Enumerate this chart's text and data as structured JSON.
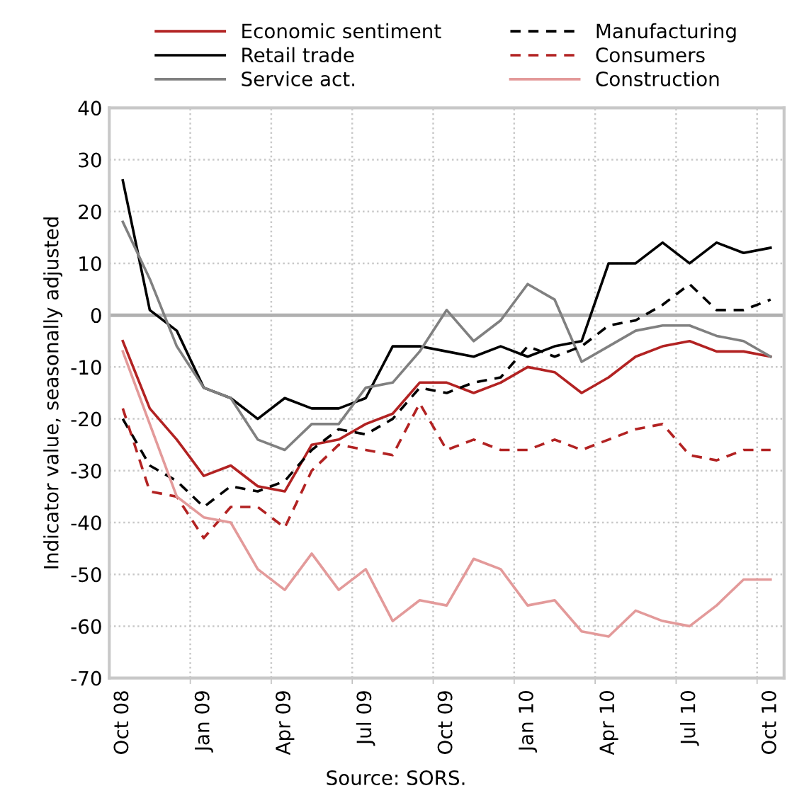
{
  "chart_data": {
    "type": "line",
    "ylabel": "Indicator value, seasonally adjusted",
    "annotations": [
      "Source: SORS."
    ],
    "categories": [
      "Oct 08",
      null,
      null,
      "Jan 09",
      null,
      null,
      "Apr 09",
      null,
      null,
      "Jul 09",
      null,
      null,
      "Oct 09",
      null,
      null,
      "Jan 10",
      null,
      null,
      "Apr 10",
      null,
      null,
      "Jul 10",
      null,
      null,
      "Oct 10"
    ],
    "series": [
      {
        "name": "Economic sentiment",
        "color": "#b22222",
        "line_style": "solid",
        "values": [
          -5,
          -18,
          -24,
          -31,
          -29,
          -33,
          -34,
          -25,
          -24,
          -21,
          -19,
          -13,
          -13,
          -15,
          -13,
          -10,
          -11,
          -15,
          -12,
          -8,
          -6,
          -5,
          -7,
          -7,
          -8
        ]
      },
      {
        "name": "Retail trade",
        "color": "#000000",
        "line_style": "solid",
        "values": [
          26,
          1,
          -3,
          -14,
          -16,
          -20,
          -16,
          -18,
          -18,
          -16,
          -6,
          -6,
          -7,
          -8,
          -6,
          -8,
          -6,
          -5,
          10,
          10,
          14,
          10,
          14,
          12,
          13
        ]
      },
      {
        "name": "Service act.",
        "color": "#808080",
        "line_style": "solid",
        "values": [
          18,
          7,
          -6,
          -14,
          -16,
          -24,
          -26,
          -21,
          -21,
          -14,
          -13,
          -7,
          1,
          -5,
          -1,
          6,
          3,
          -9,
          -6,
          -3,
          -2,
          -2,
          -4,
          -5,
          -8
        ]
      },
      {
        "name": "Manufacturing",
        "color": "#000000",
        "line_style": "dashed",
        "values": [
          -20,
          -29,
          -32,
          -37,
          -33,
          -34,
          -32,
          -26,
          -22,
          -23,
          -20,
          -14,
          -15,
          -13,
          -12,
          -6,
          -8,
          -6,
          -2,
          -1,
          2,
          6,
          1,
          1,
          3
        ]
      },
      {
        "name": "Consumers",
        "color": "#b22222",
        "line_style": "dashed",
        "values": [
          -18,
          -34,
          -35,
          -43,
          -37,
          -37,
          -41,
          -30,
          -25,
          -26,
          -27,
          -17,
          -26,
          -24,
          -26,
          -26,
          -24,
          -26,
          -24,
          -22,
          -21,
          -27,
          -28,
          -26,
          -26
        ]
      },
      {
        "name": "Construction",
        "color": "#e39a9a",
        "line_style": "solid",
        "values": [
          -7,
          -21,
          -35,
          -39,
          -40,
          -49,
          -53,
          -46,
          -53,
          -49,
          -59,
          -55,
          -56,
          -47,
          -49,
          -56,
          -55,
          -61,
          -62,
          -57,
          -59,
          -60,
          -56,
          -51,
          -51
        ]
      }
    ],
    "ylim": [
      -70,
      40
    ],
    "yticks": [
      -70,
      -60,
      -50,
      -40,
      -30,
      -20,
      -10,
      0,
      10,
      20,
      30,
      40
    ],
    "ref_lines": [
      {
        "axis": "y",
        "value": 0,
        "color": "#b0b0b0"
      }
    ],
    "grid": true,
    "legend": "top",
    "marker": "none"
  }
}
